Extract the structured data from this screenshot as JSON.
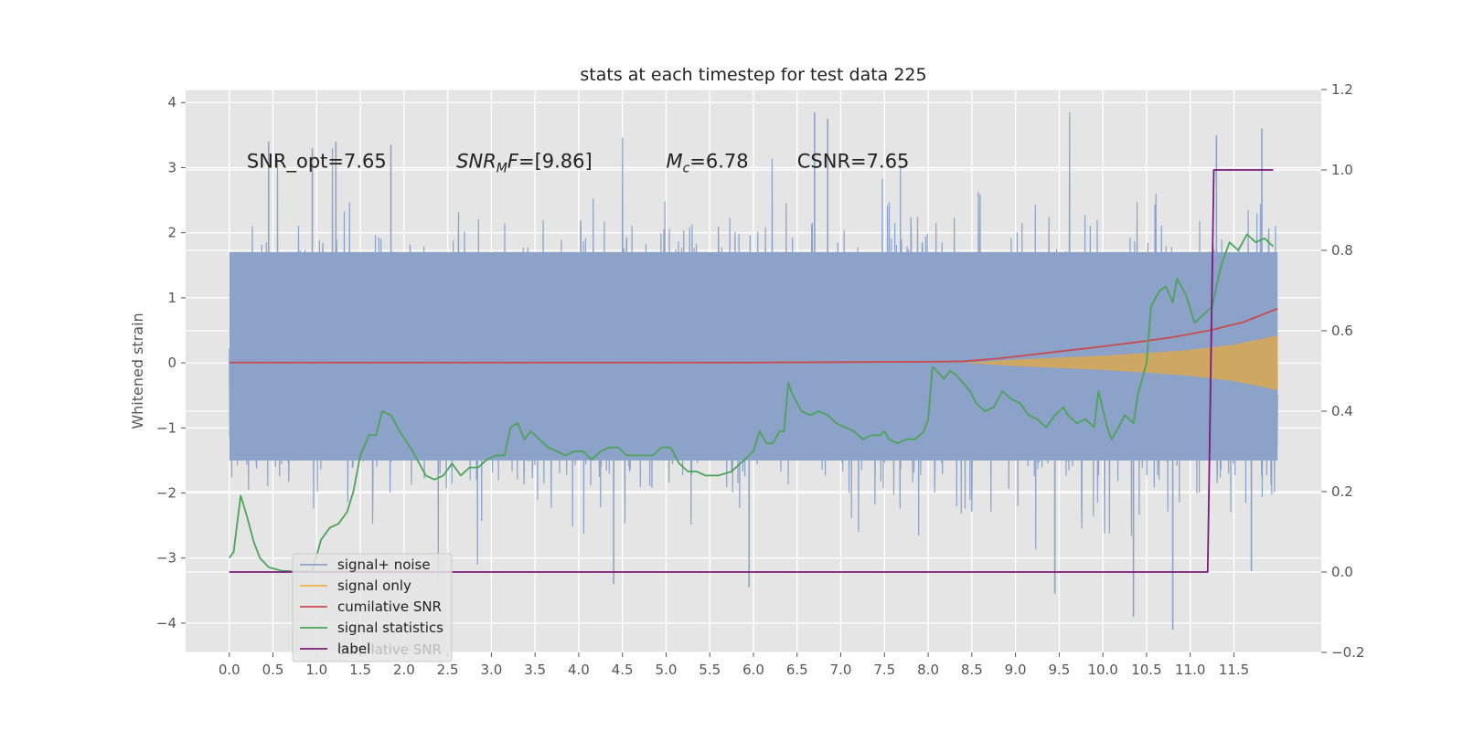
{
  "chart_data": {
    "type": "line",
    "title": "stats at each timestep for test data 225",
    "ylabel": "Whitened strain",
    "xlim": [
      -0.5,
      12.5
    ],
    "ylim_left": [
      -4.45,
      4.2
    ],
    "ylim_right": [
      -0.2,
      1.2
    ],
    "x_ticks": [
      0.0,
      0.5,
      1.0,
      1.5,
      2.0,
      2.5,
      3.0,
      3.5,
      4.0,
      4.5,
      5.0,
      5.5,
      6.0,
      6.5,
      7.0,
      7.5,
      8.0,
      8.5,
      9.0,
      9.5,
      10.0,
      10.5,
      11.0,
      11.5
    ],
    "x_tick_labels": [
      "0.0",
      "0.5",
      "1.0",
      "1.5",
      "2.0",
      "2.5",
      "3.0",
      "3.5",
      "4.0",
      "4.5",
      "5.0",
      "5.5",
      "6.0",
      "6.5",
      "7.0",
      "7.5",
      "8.0",
      "8.5",
      "9.0",
      "9.5",
      "10.0",
      "10.5",
      "11.0",
      "11.5"
    ],
    "y_ticks_left": [
      -4,
      -3,
      -2,
      -1,
      0,
      1,
      2,
      3,
      4
    ],
    "y_tick_labels_left": [
      "−4",
      "−3",
      "−2",
      "−1",
      "0",
      "1",
      "2",
      "3",
      "4"
    ],
    "y_ticks_right": [
      -0.2,
      0.0,
      0.2,
      0.4,
      0.6,
      0.8,
      1.0,
      1.2
    ],
    "y_tick_labels_right": [
      "−0.2",
      "0.0",
      "0.2",
      "0.4",
      "0.6",
      "0.8",
      "1.0",
      "1.2"
    ],
    "grid": true,
    "legend_position": "lower-left",
    "annotations": [
      {
        "kind": "plain",
        "text": "SNR_opt=7.65",
        "x": 0.2,
        "y": 3.0
      },
      {
        "kind": "snrmf",
        "base": "SNR",
        "sub": "M",
        "rest": "F=[9.86]",
        "x": 2.6,
        "y": 3.0
      },
      {
        "kind": "mc",
        "base": "M",
        "sub": "c",
        "rest": "=6.78",
        "x": 5.0,
        "y": 3.0
      },
      {
        "kind": "plain",
        "text": "CSNR=7.65",
        "x": 6.5,
        "y": 3.0
      }
    ],
    "series": [
      {
        "name": "signal+ noise",
        "axis": "left",
        "color": "#8ca2c9",
        "x_range": [
          0.0,
          12.0
        ],
        "band_low": -1.5,
        "band_high": 1.7,
        "peak_max": 3.85,
        "peak_min": -4.1,
        "notable_spikes": [
          [
            0.45,
            3.4
          ],
          [
            0.95,
            3.3
          ],
          [
            1.22,
            3.4
          ],
          [
            1.85,
            3.35
          ],
          [
            4.4,
            -3.4
          ],
          [
            5.95,
            -3.45
          ],
          [
            6.7,
            3.85
          ],
          [
            6.85,
            3.75
          ],
          [
            9.45,
            -3.55
          ],
          [
            10.35,
            -3.9
          ],
          [
            10.8,
            -4.1
          ],
          [
            11.3,
            3.5
          ],
          [
            11.82,
            3.6
          ],
          [
            11.7,
            -3.2
          ]
        ]
      },
      {
        "name": "signal only",
        "axis": "left",
        "color": "#e8b04a",
        "envelope": [
          [
            8.4,
            0.0
          ],
          [
            9.0,
            0.05
          ],
          [
            9.5,
            0.08
          ],
          [
            10.0,
            0.11
          ],
          [
            10.5,
            0.15
          ],
          [
            11.0,
            0.2
          ],
          [
            11.5,
            0.28
          ],
          [
            12.0,
            0.42
          ]
        ]
      },
      {
        "name": "cumilative SNR",
        "axis": "right",
        "color": "#c84c4c",
        "x": [
          0.0,
          1.0,
          2.0,
          3.0,
          4.0,
          5.0,
          6.0,
          7.0,
          8.0,
          8.4,
          8.8,
          9.2,
          9.6,
          10.0,
          10.4,
          10.8,
          11.2,
          11.6,
          12.0
        ],
        "y": [
          0.521,
          0.521,
          0.521,
          0.521,
          0.521,
          0.521,
          0.521,
          0.522,
          0.523,
          0.524,
          0.531,
          0.541,
          0.551,
          0.561,
          0.572,
          0.584,
          0.6,
          0.621,
          0.655
        ]
      },
      {
        "name": "signal statistics",
        "axis": "right",
        "color": "#4ca35a",
        "x": [
          0.0,
          0.05,
          0.13,
          0.2,
          0.28,
          0.35,
          0.45,
          0.6,
          0.8,
          0.95,
          1.05,
          1.15,
          1.25,
          1.35,
          1.42,
          1.5,
          1.6,
          1.68,
          1.75,
          1.85,
          1.95,
          2.1,
          2.25,
          2.35,
          2.45,
          2.55,
          2.65,
          2.75,
          2.85,
          2.95,
          3.05,
          3.15,
          3.22,
          3.3,
          3.38,
          3.45,
          3.55,
          3.65,
          3.75,
          3.85,
          3.95,
          4.05,
          4.15,
          4.25,
          4.35,
          4.45,
          4.55,
          4.65,
          4.75,
          4.85,
          4.95,
          5.05,
          5.15,
          5.25,
          5.35,
          5.45,
          5.6,
          5.75,
          5.9,
          6.0,
          6.07,
          6.15,
          6.22,
          6.3,
          6.35,
          6.4,
          6.45,
          6.55,
          6.65,
          6.75,
          6.85,
          6.95,
          7.05,
          7.15,
          7.25,
          7.35,
          7.45,
          7.5,
          7.55,
          7.65,
          7.75,
          7.85,
          7.95,
          8.0,
          8.05,
          8.1,
          8.18,
          8.25,
          8.32,
          8.4,
          8.48,
          8.55,
          8.6,
          8.65,
          8.75,
          8.85,
          8.95,
          9.05,
          9.15,
          9.25,
          9.35,
          9.45,
          9.55,
          9.6,
          9.7,
          9.8,
          9.85,
          9.9,
          9.95,
          10.05,
          10.1,
          10.18,
          10.25,
          10.3,
          10.35,
          10.4,
          10.45,
          10.5,
          10.55,
          10.65,
          10.72,
          10.8,
          10.85,
          10.95,
          11.05,
          11.15,
          11.25,
          11.35,
          11.45,
          11.55,
          11.65,
          11.75,
          11.85,
          11.95
        ],
        "y": [
          0.035,
          0.05,
          0.19,
          0.14,
          0.075,
          0.035,
          0.012,
          0.003,
          0.001,
          0.002,
          0.08,
          0.11,
          0.12,
          0.15,
          0.2,
          0.29,
          0.34,
          0.34,
          0.4,
          0.39,
          0.35,
          0.3,
          0.24,
          0.23,
          0.24,
          0.27,
          0.24,
          0.26,
          0.26,
          0.28,
          0.29,
          0.29,
          0.36,
          0.37,
          0.33,
          0.35,
          0.33,
          0.31,
          0.3,
          0.29,
          0.3,
          0.3,
          0.28,
          0.3,
          0.31,
          0.31,
          0.29,
          0.29,
          0.29,
          0.29,
          0.31,
          0.31,
          0.27,
          0.25,
          0.25,
          0.24,
          0.24,
          0.25,
          0.28,
          0.3,
          0.35,
          0.32,
          0.32,
          0.35,
          0.35,
          0.47,
          0.44,
          0.4,
          0.39,
          0.4,
          0.39,
          0.37,
          0.36,
          0.35,
          0.33,
          0.34,
          0.34,
          0.35,
          0.33,
          0.32,
          0.33,
          0.33,
          0.35,
          0.38,
          0.51,
          0.5,
          0.48,
          0.5,
          0.49,
          0.47,
          0.45,
          0.42,
          0.41,
          0.4,
          0.41,
          0.45,
          0.43,
          0.42,
          0.39,
          0.38,
          0.36,
          0.39,
          0.41,
          0.39,
          0.37,
          0.38,
          0.37,
          0.36,
          0.45,
          0.36,
          0.33,
          0.36,
          0.39,
          0.38,
          0.37,
          0.44,
          0.48,
          0.52,
          0.66,
          0.7,
          0.71,
          0.67,
          0.73,
          0.69,
          0.62,
          0.64,
          0.66,
          0.76,
          0.82,
          0.8,
          0.84,
          0.82,
          0.83,
          0.81
        ]
      },
      {
        "name": "label",
        "axis": "right",
        "color": "#7b1a7b",
        "x": [
          0.0,
          11.2,
          11.27,
          11.95
        ],
        "y": [
          0.0,
          0.0,
          1.0,
          1.0
        ]
      }
    ],
    "legend_background_text": "cumilative SNR"
  }
}
